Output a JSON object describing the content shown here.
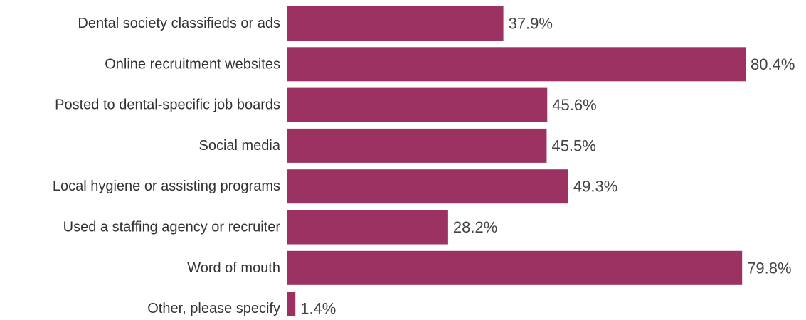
{
  "chart_data": {
    "type": "bar",
    "orientation": "horizontal",
    "categories": [
      "Dental society classifieds or ads",
      "Online recruitment websites",
      "Posted to dental-specific job boards",
      "Social media",
      "Local hygiene or assisting programs",
      "Used a staffing agency or recruiter",
      "Word of mouth",
      "Other, please specify"
    ],
    "values": [
      37.9,
      80.4,
      45.6,
      45.5,
      49.3,
      28.2,
      79.8,
      1.4
    ],
    "value_labels": [
      "37.9%",
      "80.4%",
      "45.6%",
      "45.5%",
      "49.3%",
      "28.2%",
      "79.8%",
      "1.4%"
    ],
    "unit": "%",
    "title": "",
    "xlabel": "",
    "ylabel": "",
    "xlim": [
      0,
      100
    ],
    "grid": false,
    "legend": "none",
    "bar_color": "#9b3262"
  }
}
